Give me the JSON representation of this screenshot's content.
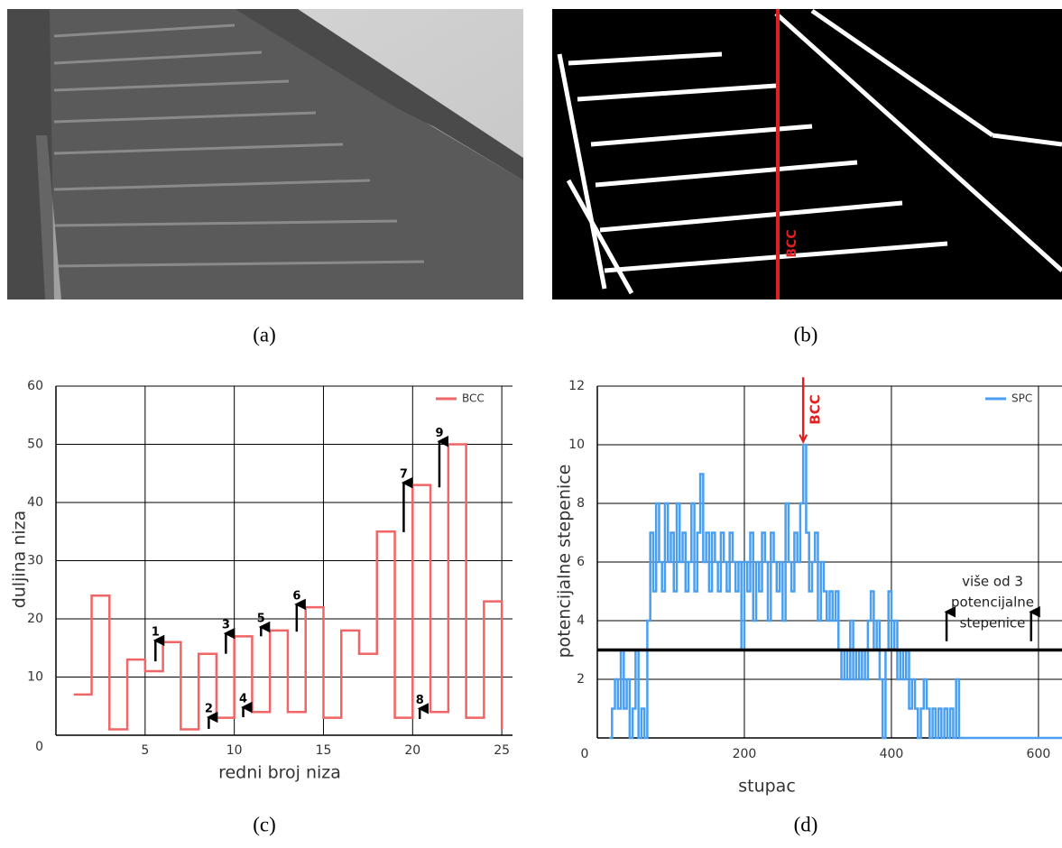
{
  "panel_labels": [
    "(a)",
    "(b)",
    "(c)",
    "(d)"
  ],
  "image_b_marker": "BCC",
  "chart_data": [
    {
      "type": "line",
      "step": true,
      "xlabel": "redni broj niza",
      "ylabel": "duljina niza",
      "x": [
        1,
        2,
        3,
        4,
        5,
        6,
        7,
        8,
        9,
        10,
        11,
        12,
        13,
        14,
        15,
        16,
        17,
        18,
        19,
        20,
        21,
        22,
        23,
        24,
        25
      ],
      "series": [
        {
          "name": "BCC",
          "color": "#f06565",
          "values": [
            7,
            24,
            1,
            13,
            11,
            16,
            1,
            14,
            3,
            17,
            4,
            18,
            4,
            22,
            3,
            18,
            14,
            35,
            3,
            43,
            4,
            50,
            3,
            23,
            1
          ]
        }
      ],
      "xlim": [
        0,
        25.6
      ],
      "ylim": [
        0,
        60
      ],
      "xticks": [
        5,
        10,
        15,
        20,
        25
      ],
      "yticks": [
        0,
        10,
        20,
        30,
        40,
        50,
        60
      ],
      "grid": true,
      "legend": "upper right",
      "annotations": [
        {
          "text": "1",
          "from": [
            5.58,
            12.7
          ],
          "to": [
            5.58,
            16.3
          ]
        },
        {
          "text": "2",
          "from": [
            8.57,
            1.1
          ],
          "to": [
            8.57,
            3.1
          ]
        },
        {
          "text": "3",
          "from": [
            9.53,
            14
          ],
          "to": [
            9.53,
            17.5
          ]
        },
        {
          "text": "4",
          "from": [
            10.5,
            3.1
          ],
          "to": [
            10.5,
            4.8
          ]
        },
        {
          "text": "5",
          "from": [
            11.5,
            17
          ],
          "to": [
            11.5,
            18.6
          ]
        },
        {
          "text": "6",
          "from": [
            13.5,
            17.8
          ],
          "to": [
            13.5,
            22.5
          ]
        },
        {
          "text": "7",
          "from": [
            19.5,
            34.9
          ],
          "to": [
            19.5,
            43.4
          ]
        },
        {
          "text": "8",
          "from": [
            20.4,
            2.8
          ],
          "to": [
            20.4,
            4.6
          ]
        },
        {
          "text": "9",
          "from": [
            21.5,
            42.6
          ],
          "to": [
            21.5,
            50.5
          ]
        }
      ]
    },
    {
      "type": "line",
      "step": true,
      "xlabel": "stupac",
      "ylabel": "potencijalne stepenice",
      "x": [
        16,
        20,
        24,
        28,
        32,
        36,
        40,
        44,
        48,
        52,
        56,
        60,
        64,
        68,
        72,
        76,
        80,
        84,
        88,
        92,
        96,
        100,
        104,
        108,
        112,
        116,
        120,
        124,
        128,
        132,
        136,
        140,
        144,
        148,
        152,
        156,
        160,
        164,
        168,
        172,
        176,
        180,
        184,
        188,
        192,
        196,
        200,
        204,
        208,
        212,
        216,
        220,
        224,
        228,
        232,
        236,
        240,
        244,
        248,
        252,
        256,
        260,
        264,
        268,
        272,
        276,
        280,
        284,
        288,
        292,
        296,
        300,
        304,
        308,
        312,
        316,
        320,
        324,
        328,
        332,
        336,
        340,
        344,
        348,
        352,
        356,
        360,
        364,
        368,
        372,
        376,
        380,
        384,
        388,
        392,
        396,
        400,
        404,
        408,
        412,
        416,
        420,
        424,
        428,
        432,
        436,
        440,
        444,
        448,
        452,
        456,
        460,
        464,
        468,
        472,
        476,
        480,
        484,
        488,
        492,
        496,
        632
      ],
      "series": [
        {
          "name": "SPC",
          "color": "#4a9ff0",
          "values": [
            0,
            1,
            2,
            1,
            3,
            1,
            2,
            0,
            1,
            3,
            0,
            1,
            0,
            4,
            7,
            5,
            8,
            6,
            5,
            8,
            6,
            7,
            5,
            8,
            6,
            7,
            5,
            6,
            8,
            5,
            7,
            9,
            6,
            7,
            5,
            7,
            6,
            5,
            7,
            6,
            5,
            7,
            6,
            5,
            6,
            3,
            6,
            5,
            7,
            4,
            6,
            5,
            7,
            6,
            4,
            7,
            6,
            5,
            6,
            4,
            8,
            6,
            5,
            7,
            6,
            8,
            10,
            7,
            5,
            6,
            7,
            4,
            6,
            5,
            4,
            5,
            4,
            5,
            3,
            2,
            3,
            2,
            4,
            2,
            3,
            2,
            3,
            2,
            4,
            5,
            3,
            4,
            2,
            0,
            3,
            5,
            3,
            4,
            2,
            3,
            2,
            3,
            1,
            2,
            1,
            0,
            1,
            2,
            1,
            0,
            1,
            0,
            1,
            0,
            1,
            0,
            1,
            0,
            2,
            0,
            0,
            0
          ]
        }
      ],
      "xlim": [
        0,
        632
      ],
      "ylim": [
        0,
        12
      ],
      "xticks": [
        0,
        200,
        400,
        600
      ],
      "yticks": [
        2,
        4,
        6,
        8,
        10,
        12
      ],
      "grid": true,
      "legend": "upper right",
      "threshold": 3,
      "marker": {
        "text": "BCC",
        "x": 280,
        "from": 12.3,
        "to": 10.1,
        "color": "#e02020"
      },
      "annotation_text": [
        "više od 3",
        "potencijalne",
        "stepenice"
      ],
      "arrows": [
        {
          "from": [
            475,
            3.3
          ],
          "to": [
            475,
            4.3
          ]
        },
        {
          "from": [
            590,
            3.3
          ],
          "to": [
            590,
            4.3
          ]
        }
      ]
    }
  ]
}
